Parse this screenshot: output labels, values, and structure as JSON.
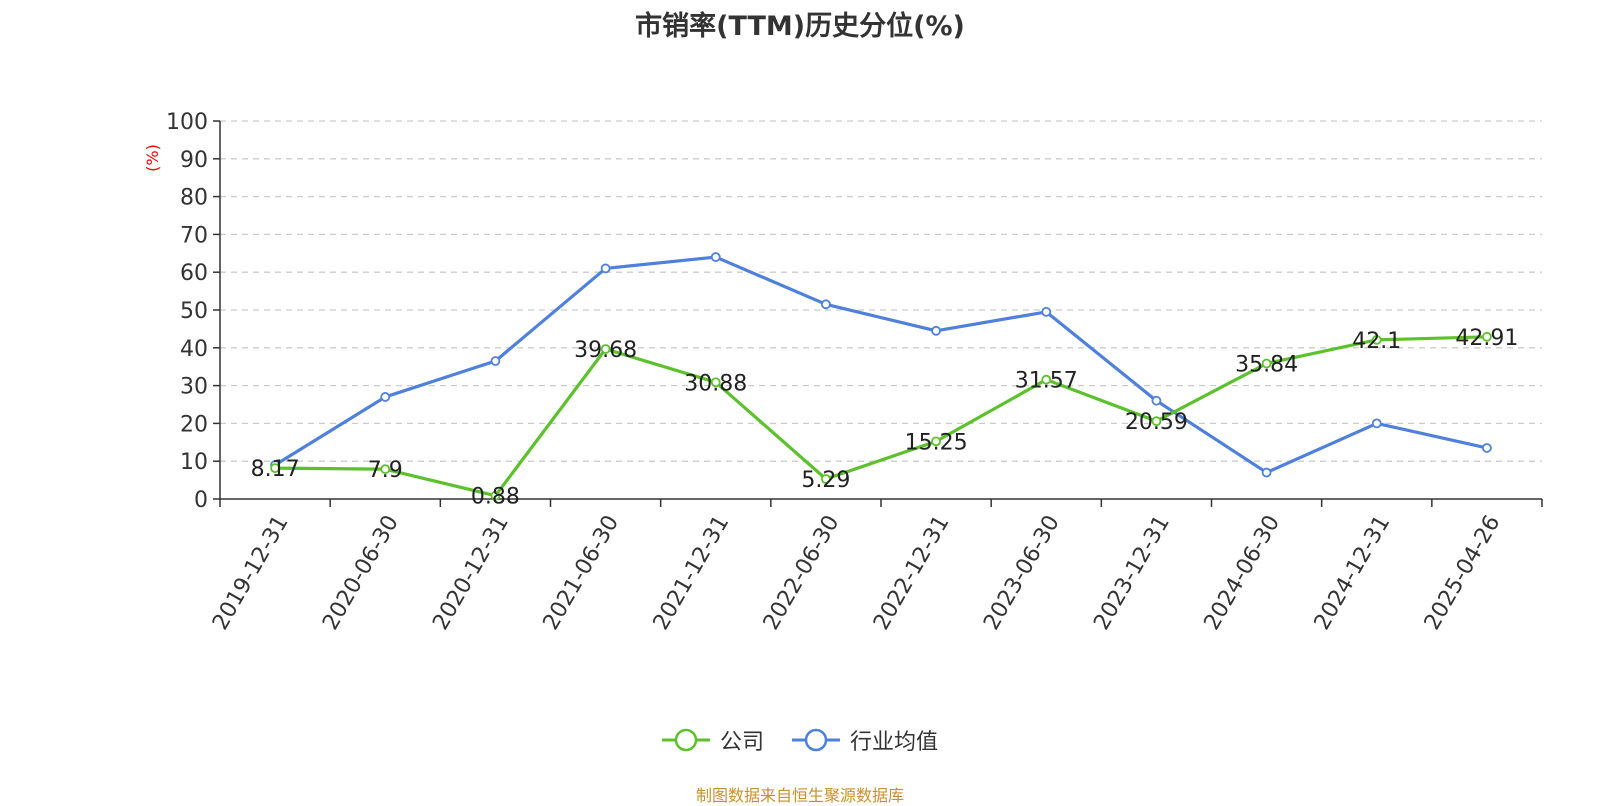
{
  "colors": {
    "company": "#5cc12d",
    "industry": "#4e80dc",
    "ylabel": "#ff0000",
    "source": "#c8902a",
    "grid": "#cccccc",
    "axis": "#333333"
  },
  "chart_data": {
    "type": "line",
    "title": "市销率(TTM)历史分位(%)",
    "ylabel": "(%)",
    "ylim": [
      0,
      100
    ],
    "yticks": [
      0,
      10,
      20,
      30,
      40,
      50,
      60,
      70,
      80,
      90,
      100
    ],
    "grid": true,
    "legend_position": "bottom-center",
    "categories": [
      "2019-12-31",
      "2020-06-30",
      "2020-12-31",
      "2021-06-30",
      "2021-12-31",
      "2022-06-30",
      "2022-12-31",
      "2023-06-30",
      "2023-12-31",
      "2024-06-30",
      "2024-12-31",
      "2025-04-26"
    ],
    "series": [
      {
        "name": "公司",
        "values": [
          8.17,
          7.9,
          0.88,
          39.68,
          30.88,
          5.29,
          15.25,
          31.57,
          20.59,
          35.84,
          42.1,
          42.91
        ],
        "data_labels": true
      },
      {
        "name": "行业均值",
        "values": [
          9,
          27,
          36.5,
          61,
          64,
          51.5,
          44.5,
          49.5,
          26,
          7,
          20,
          13.5
        ],
        "data_labels": false
      }
    ]
  },
  "source": "制图数据来自恒生聚源数据库"
}
